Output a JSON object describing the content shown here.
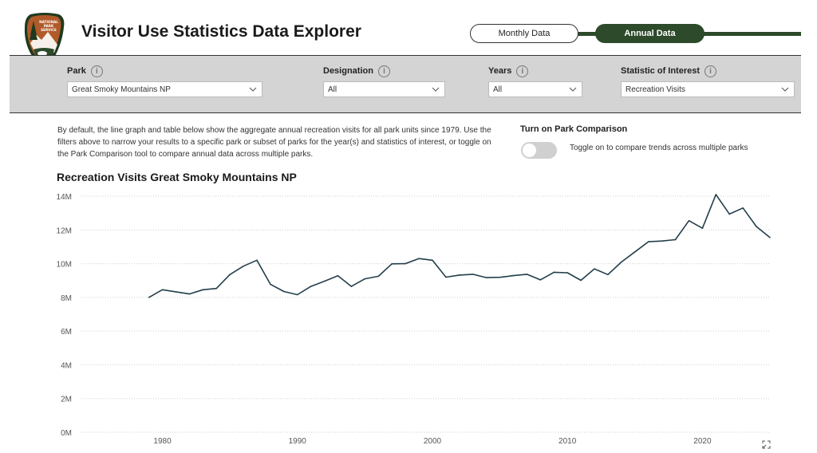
{
  "header": {
    "title": "Visitor Use Statistics Data Explorer",
    "logo_text": [
      "NATIONAL",
      "PARK",
      "SERVICE"
    ],
    "tabs": [
      "Monthly Data",
      "Annual Data"
    ],
    "active_tab": "Annual Data"
  },
  "colors": {
    "brand_green": "#2d4a2b",
    "logo_brown": "#b05a2a",
    "line": "#233f4a"
  },
  "filters": [
    {
      "label": "Park",
      "value": "Great Smoky Mountains NP"
    },
    {
      "label": "Designation",
      "value": "All"
    },
    {
      "label": "Years",
      "value": "All"
    },
    {
      "label": "Statistic of Interest",
      "value": "Recreation Visits"
    }
  ],
  "description": "By default, the line graph and table below show the aggregate annual recreation visits for all park units since 1979. Use the filters above to narrow your results to a specific park or subset of parks for the year(s) and statistics of interest, or toggle on the Park Comparison tool to compare annual data across multiple parks.",
  "comparison": {
    "title": "Turn on Park Comparison",
    "toggle_state": "off",
    "hint": "Toggle on to compare trends across multiple parks"
  },
  "chart_title": "Recreation Visits Great Smoky Mountains NP",
  "chart_data": {
    "type": "line",
    "title": "Recreation Visits Great Smoky Mountains NP",
    "xlabel": "",
    "ylabel": "",
    "xlim": [
      1974,
      2025
    ],
    "ylim": [
      0,
      14000000
    ],
    "y_ticks": [
      "0M",
      "2M",
      "4M",
      "6M",
      "8M",
      "10M",
      "12M",
      "14M"
    ],
    "x_ticks": [
      "1980",
      "1990",
      "2000",
      "2010",
      "2020"
    ],
    "grid": "horizontal dotted",
    "x": [
      1979,
      1980,
      1981,
      1982,
      1983,
      1984,
      1985,
      1986,
      1987,
      1988,
      1989,
      1990,
      1991,
      1992,
      1993,
      1994,
      1995,
      1996,
      1997,
      1998,
      1999,
      2000,
      2001,
      2002,
      2003,
      2004,
      2005,
      2006,
      2007,
      2008,
      2009,
      2010,
      2011,
      2012,
      2013,
      2014,
      2015,
      2016,
      2017,
      2018,
      2019,
      2020,
      2021,
      2022,
      2023,
      2024,
      2025
    ],
    "values": [
      8000000,
      8450000,
      8330000,
      8200000,
      8450000,
      8530000,
      9350000,
      9850000,
      10200000,
      8780000,
      8350000,
      8160000,
      8650000,
      8960000,
      9280000,
      8650000,
      9100000,
      9250000,
      9990000,
      10000000,
      10300000,
      10200000,
      9200000,
      9320000,
      9370000,
      9170000,
      9190000,
      9290000,
      9370000,
      9040000,
      9490000,
      9460000,
      9010000,
      9690000,
      9350000,
      10100000,
      10700000,
      11300000,
      11340000,
      11420000,
      12550000,
      12100000,
      14100000,
      12940000,
      13300000,
      12200000,
      11550000
    ]
  }
}
